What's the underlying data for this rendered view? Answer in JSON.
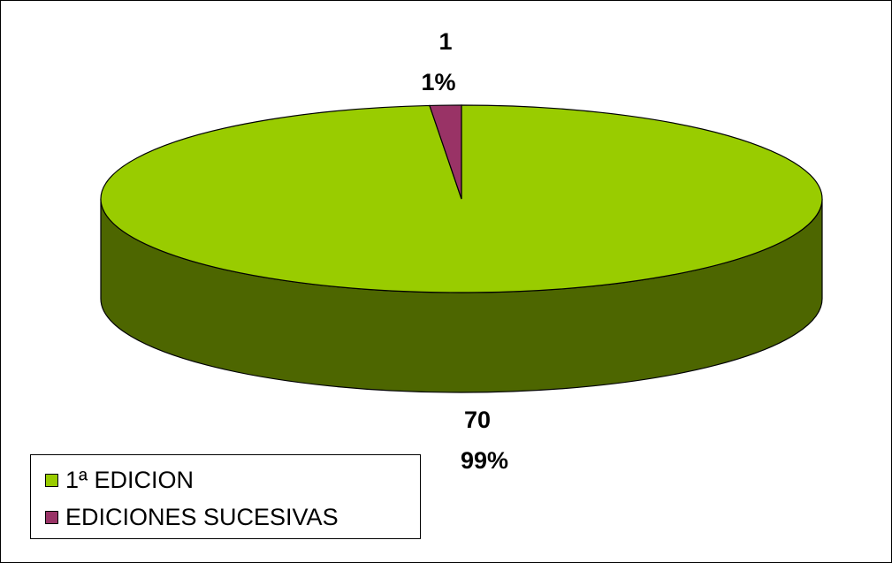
{
  "chart_data": {
    "type": "pie",
    "style": "3d",
    "title": "",
    "slices": [
      {
        "label": "1ª EDICION",
        "value": 70,
        "percent": "99%",
        "color": "#99cc00",
        "side_color": "#4d6600"
      },
      {
        "label": "EDICIONES SUCESIVAS",
        "value": 1,
        "percent": "1%",
        "color": "#993366",
        "side_color": "#4d1a33"
      }
    ],
    "legend": {
      "position": "bottom-left"
    }
  }
}
